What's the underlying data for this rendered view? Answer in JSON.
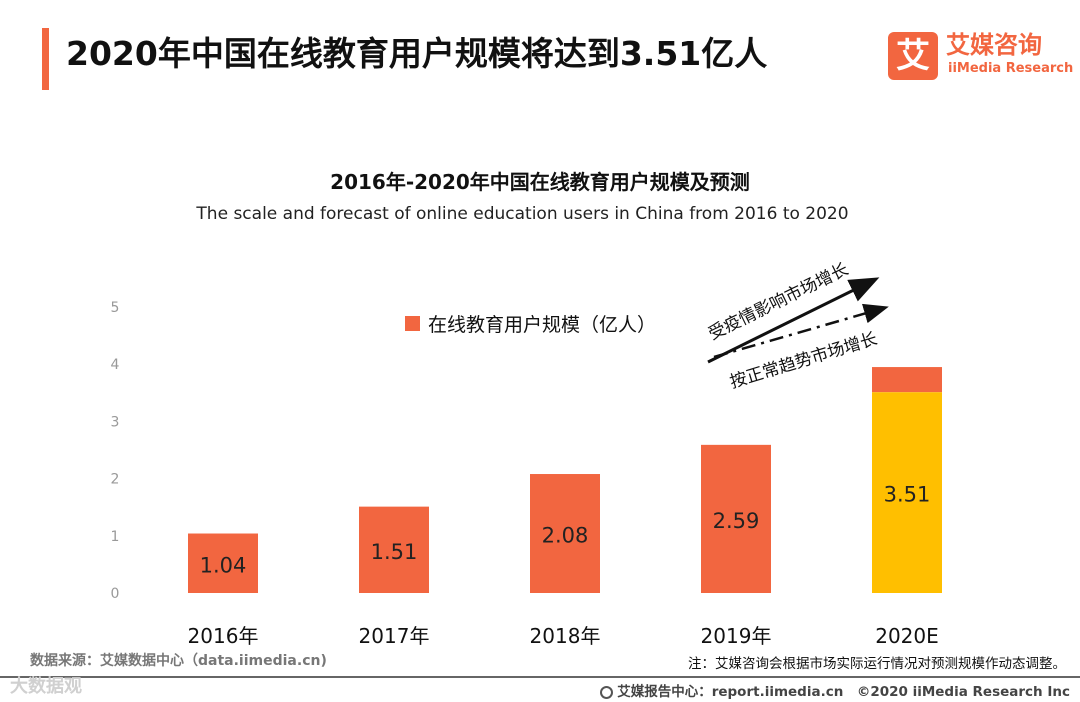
{
  "header": {
    "title": "2020年中国在线教育用户规模将达到3.51亿人"
  },
  "logo": {
    "mark": "艾",
    "name_cn": "艾媒咨询",
    "name_en": "iiMedia Research"
  },
  "colors": {
    "accent": "#f26640",
    "forecast": "#ffbf00",
    "axis_text": "#999999"
  },
  "chart_data": {
    "type": "bar",
    "title": "2016年-2020年中国在线教育用户规模及预测",
    "subtitle": "The scale and forecast of online education users in China from 2016 to 2020",
    "categories": [
      "2016年",
      "2017年",
      "2018年",
      "2019年",
      "2020E"
    ],
    "series": [
      {
        "name": "在线教育用户规模（亿人）",
        "values": [
          1.04,
          1.51,
          2.08,
          2.59,
          3.51
        ],
        "labels": [
          "1.04",
          "1.51",
          "2.08",
          "2.59",
          "3.51"
        ]
      }
    ],
    "forecast_extra": {
      "category": "2020E",
      "total": 3.95
    },
    "y_ticks": [
      "0",
      "1",
      "2",
      "3",
      "4",
      "5"
    ],
    "ylim": [
      0,
      5
    ],
    "legend_position": "top-center",
    "annotations": [
      "受疫情影响市场增长",
      "按正常趋势市场增长"
    ]
  },
  "footer": {
    "source": "数据来源：艾媒数据中心（data.iimedia.cn)",
    "note": "注：艾媒咨询会根据市场实际运行情况对预测规模作动态调整。",
    "watermark": "大数据观",
    "site": "艾媒报告中心：report.iimedia.cn　©2020 iiMedia Research Inc"
  }
}
